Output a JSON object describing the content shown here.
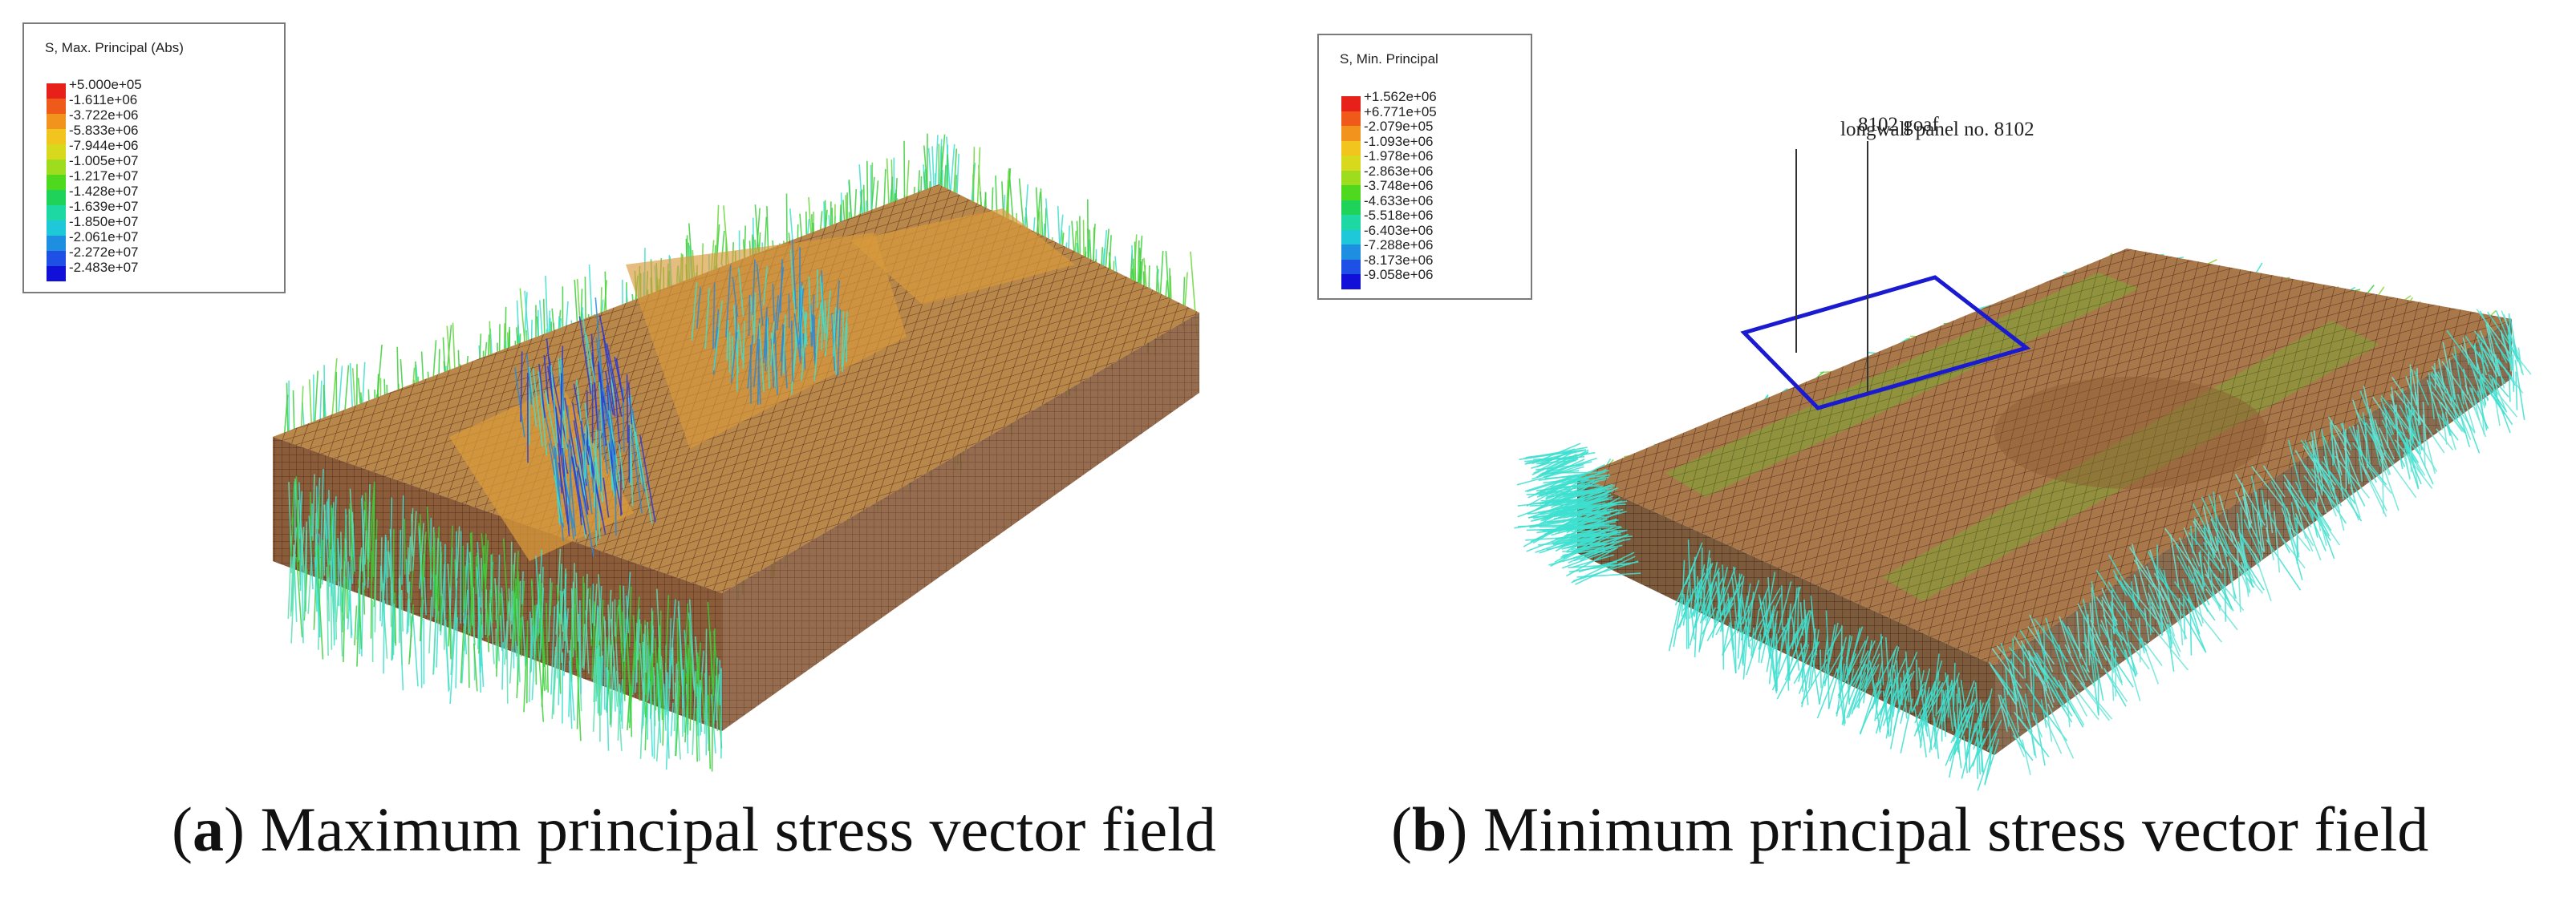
{
  "figure_a": {
    "caption_letter": "a",
    "caption_text": "Maximum principal stress vector field",
    "legend": {
      "title": "S, Max. Principal (Abs)",
      "values": [
        "+5.000e+05",
        "-1.611e+06",
        "-3.722e+06",
        "-5.833e+06",
        "-7.944e+06",
        "-1.005e+07",
        "-1.217e+07",
        "-1.428e+07",
        "-1.639e+07",
        "-1.850e+07",
        "-2.061e+07",
        "-2.272e+07",
        "-2.483e+07"
      ],
      "colors": [
        "#e8201a",
        "#ef5a1a",
        "#f2931e",
        "#f2c51e",
        "#d8d81c",
        "#9edc1e",
        "#4ed91e",
        "#1ed25a",
        "#1ed8a4",
        "#1ec8d8",
        "#1e8ee0",
        "#1e50e6",
        "#1010d8"
      ]
    }
  },
  "figure_b": {
    "caption_letter": "b",
    "caption_text": "Minimum principal stress vector field",
    "legend": {
      "title": "S, Min. Principal",
      "values": [
        "+1.562e+06",
        "+6.771e+05",
        "-2.079e+05",
        "-1.093e+06",
        "-1.978e+06",
        "-2.863e+06",
        "-3.748e+06",
        "-4.633e+06",
        "-5.518e+06",
        "-6.403e+06",
        "-7.288e+06",
        "-8.173e+06",
        "-9.058e+06"
      ],
      "colors": [
        "#e8201a",
        "#ef5a1a",
        "#f2931e",
        "#f2c51e",
        "#d8d81c",
        "#9edc1e",
        "#4ed91e",
        "#1ed25a",
        "#1ed8a4",
        "#1ec8d8",
        "#1e8ee0",
        "#1e50e6",
        "#1010d8"
      ]
    },
    "annotations": {
      "panel_label": "longwall panel no. 8102",
      "goaf_label": "8102 goaf"
    }
  },
  "colors": {
    "mesh_top": "#b8874a",
    "mesh_line": "#6a3a22",
    "side_face": "#8a5c3a",
    "vector_green": "#3ccf3a",
    "vector_cyan": "#3ee0d0",
    "vector_blue": "#2a3ad8",
    "outline_blue": "#1a1ad0"
  }
}
